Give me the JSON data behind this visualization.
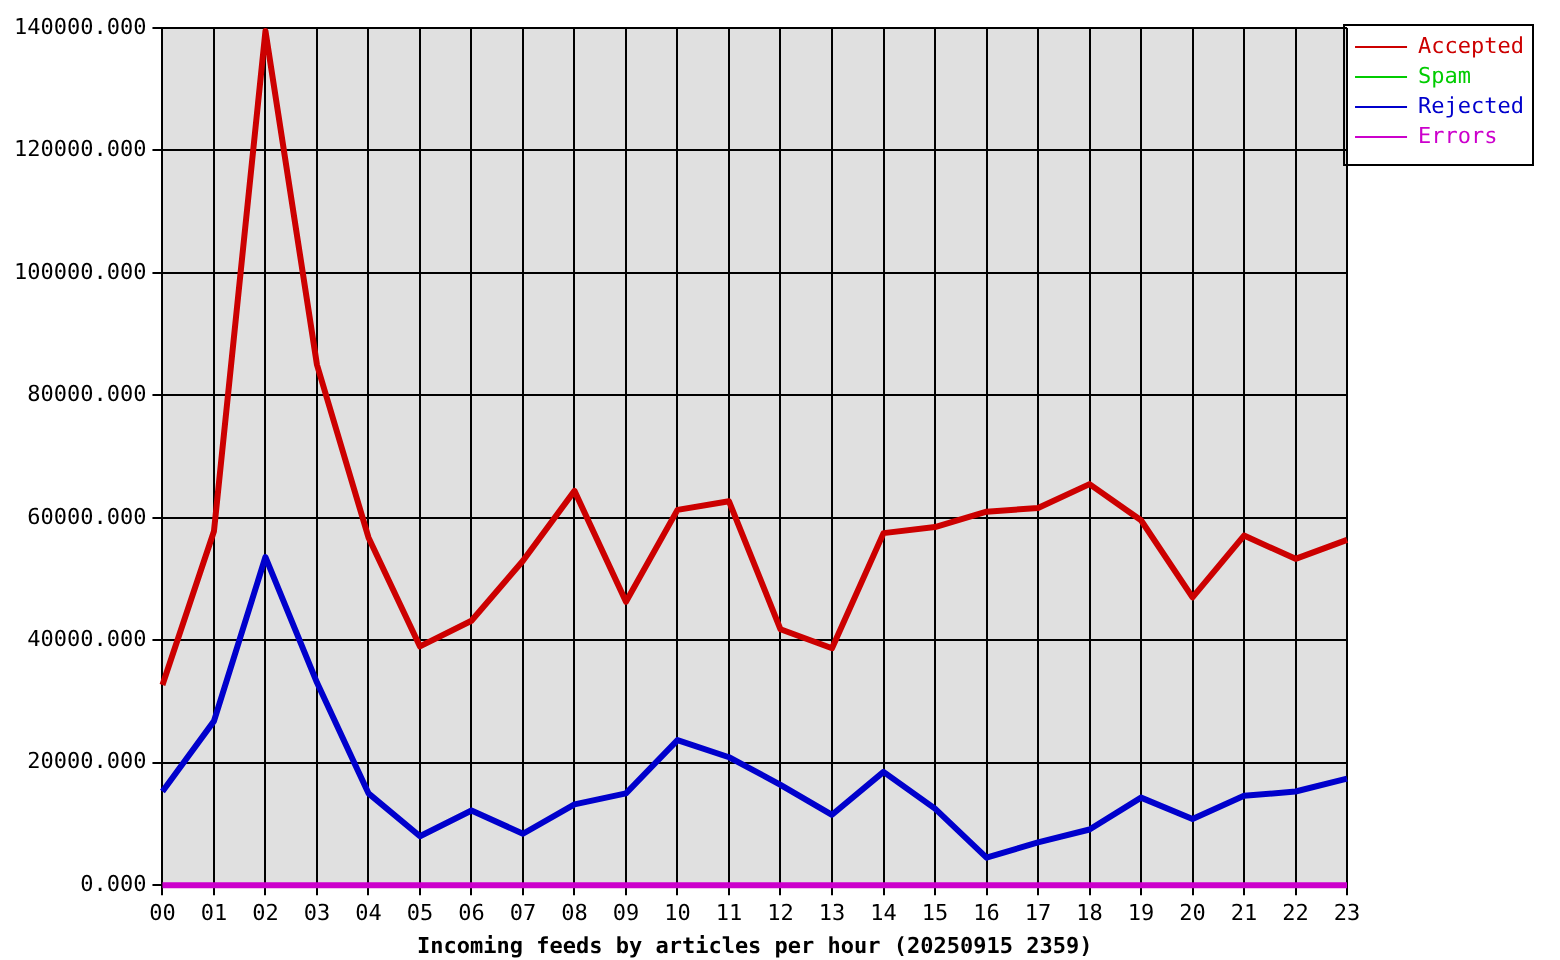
{
  "chart_data": {
    "type": "line",
    "xlabel": "Incoming feeds by articles per hour (20250915 2359)",
    "categories": [
      "00",
      "01",
      "02",
      "03",
      "04",
      "05",
      "06",
      "07",
      "08",
      "09",
      "10",
      "11",
      "12",
      "13",
      "14",
      "15",
      "16",
      "17",
      "18",
      "19",
      "20",
      "21",
      "22",
      "23"
    ],
    "series": [
      {
        "name": "Accepted",
        "color": "#cc0000",
        "values": [
          32700,
          57800,
          139500,
          85000,
          56800,
          39000,
          43200,
          53000,
          64400,
          46300,
          61300,
          62700,
          41800,
          38700,
          57500,
          58500,
          61000,
          61600,
          65500,
          59600,
          47000,
          57100,
          53300,
          56400
        ]
      },
      {
        "name": "Spam",
        "color": "#00cc00",
        "values": [
          null,
          null,
          null,
          null,
          null,
          null,
          null,
          null,
          null,
          null,
          null,
          null,
          null,
          null,
          null,
          null,
          null,
          null,
          null,
          null,
          null,
          null,
          null,
          null
        ]
      },
      {
        "name": "Rejected",
        "color": "#0000cc",
        "values": [
          15300,
          26800,
          53600,
          33100,
          15000,
          8000,
          12200,
          8400,
          13200,
          15000,
          23700,
          20900,
          16400,
          11500,
          18500,
          12500,
          4500,
          7000,
          9100,
          14300,
          10800,
          14600,
          15300,
          17400
        ]
      },
      {
        "name": "Errors",
        "color": "#cc00cc",
        "values": [
          0,
          0,
          0,
          0,
          0,
          0,
          0,
          0,
          0,
          0,
          0,
          0,
          0,
          0,
          0,
          0,
          0,
          0,
          0,
          0,
          0,
          0,
          0,
          0
        ]
      }
    ],
    "ylim": [
      0,
      140000
    ],
    "yticks": [
      {
        "value": 0,
        "label": "0.000"
      },
      {
        "value": 20000,
        "label": "20000.000"
      },
      {
        "value": 40000,
        "label": "40000.000"
      },
      {
        "value": 60000,
        "label": "60000.000"
      },
      {
        "value": 80000,
        "label": "80000.000"
      },
      {
        "value": 100000,
        "label": "100000.000"
      },
      {
        "value": 120000,
        "label": "120000.000"
      },
      {
        "value": 140000,
        "label": "140000.000"
      }
    ],
    "grid": true,
    "legend": "top right",
    "marker": "none",
    "line_style": "solid"
  }
}
